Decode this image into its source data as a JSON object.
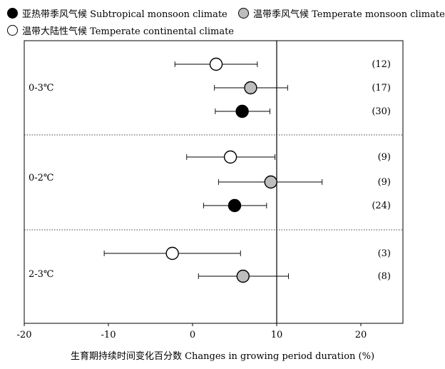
{
  "chart_data": {
    "type": "scatter",
    "subtype": "forest-plot",
    "legend": [
      {
        "name": "亚热带季风气候 Subtropical monsoon climate",
        "fill": "#000000"
      },
      {
        "name": "温带季风气候 Temperate monsoon climate",
        "fill": "#bdbdbd"
      },
      {
        "name": "温带大陆性气候 Temperate continental climate",
        "fill": "#ffffff"
      }
    ],
    "xlabel": "生育期持续时间变化百分数 Changes in growing period duration (%)",
    "xlim": [
      -20,
      25
    ],
    "xticks": [
      -20,
      -10,
      0,
      10,
      20
    ],
    "reference_line": 10,
    "groups": [
      {
        "label": "0-3℃",
        "rows": [
          {
            "series": 2,
            "mean": 2.8,
            "low": -2.1,
            "high": 7.7,
            "n_label": "(12)"
          },
          {
            "series": 1,
            "mean": 6.9,
            "low": 2.6,
            "high": 11.3,
            "n_label": "(17)"
          },
          {
            "series": 0,
            "mean": 5.9,
            "low": 2.7,
            "high": 9.2,
            "n_label": "(30)"
          }
        ]
      },
      {
        "label": "0-2℃",
        "rows": [
          {
            "series": 2,
            "mean": 4.5,
            "low": -0.7,
            "high": 9.8,
            "n_label": "(9)"
          },
          {
            "series": 1,
            "mean": 9.3,
            "low": 3.1,
            "high": 15.4,
            "n_label": "(9)"
          },
          {
            "series": 0,
            "mean": 5.0,
            "low": 1.3,
            "high": 8.8,
            "n_label": "(24)"
          }
        ]
      },
      {
        "label": "2-3℃",
        "rows": [
          {
            "series": 2,
            "mean": -2.4,
            "low": -10.5,
            "high": 5.7,
            "n_label": "(3)"
          },
          {
            "series": 1,
            "mean": 6.0,
            "low": 0.7,
            "high": 11.4,
            "n_label": "(8)"
          }
        ]
      }
    ]
  }
}
